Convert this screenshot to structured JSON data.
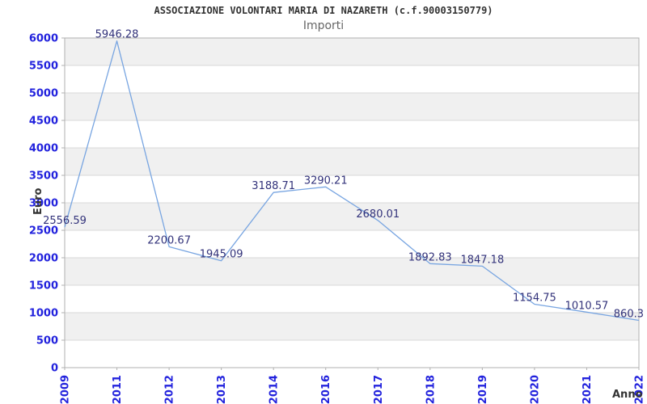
{
  "chart_data": {
    "type": "line",
    "title": "ASSOCIAZIONE VOLONTARI MARIA DI NAZARETH (c.f.90003150779)",
    "subtitle": "Importi",
    "xlabel": "Anno",
    "ylabel": "Euro",
    "categories": [
      "2009",
      "2011",
      "2012",
      "2013",
      "2014",
      "2016",
      "2017",
      "2018",
      "2019",
      "2020",
      "2021",
      "2022"
    ],
    "values": [
      2556.59,
      5946.28,
      2200.67,
      1945.09,
      3188.71,
      3290.21,
      2680.01,
      1892.83,
      1847.18,
      1154.75,
      1010.57,
      860.3
    ],
    "ylim": [
      0,
      6000
    ],
    "ytick_step": 500,
    "grid": "horizontal-bands",
    "legend": "none",
    "colors": {
      "line": "#78a5e1",
      "axis_tick_text": "#2222dd",
      "data_label": "#32327a",
      "band": "#f0f0f0",
      "gridline": "#d9d9d9",
      "plot_border": "#b0b0b0",
      "title": "#333333",
      "subtitle": "#666666",
      "background": "#ffffff"
    }
  }
}
